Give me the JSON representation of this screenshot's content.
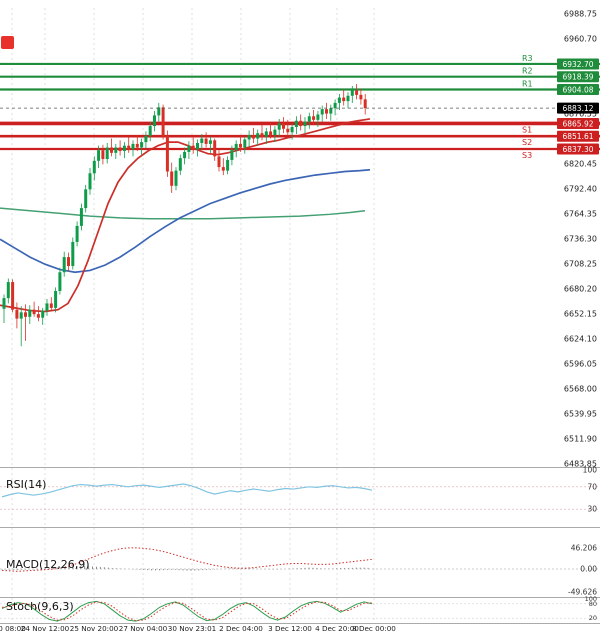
{
  "logo": {
    "color": "#e8312a"
  },
  "colors": {
    "up": "#0e9c4a",
    "down": "#d93025",
    "ma_fast": "#cc2f2a",
    "ma_mid": "#3c66b5",
    "ma_slow": "#44a072",
    "resistance": "#1e8c3a",
    "support": "#cc1f1f",
    "price_badge_bg": "#000000",
    "rsi_line": "#7fc4e0",
    "stoch_k": "#2f9e4f",
    "stoch_d": "#d93025",
    "grid": "#d8d8d8",
    "axis_text": "#222222"
  },
  "chart_data": {
    "type": "candlestick",
    "price_axis": {
      "top_value": 6988.75,
      "step": 28.05,
      "ticks": [
        "6988.75",
        "6960.70",
        "6932.65",
        "6904.60",
        "6876.55",
        "6848.50",
        "6820.45",
        "6792.40",
        "6764.35",
        "6736.30",
        "6708.25",
        "6680.20",
        "6652.15",
        "6624.10",
        "6596.05",
        "6568.00",
        "6539.95",
        "6511.90",
        "6483.85"
      ]
    },
    "pivots": [
      {
        "label": "R3",
        "value": 6932.7,
        "display": "6932.70",
        "type": "resistance"
      },
      {
        "label": "R2",
        "value": 6918.39,
        "display": "6918.39",
        "type": "resistance"
      },
      {
        "label": "R1",
        "value": 6904.08,
        "display": "6904.08",
        "type": "resistance"
      },
      {
        "label": "S1",
        "value": 6865.92,
        "display": "6865.92",
        "type": "support"
      },
      {
        "label": "S2",
        "value": 6851.61,
        "display": "6851.61",
        "type": "support"
      },
      {
        "label": "S3",
        "value": 6837.3,
        "display": "6837.30",
        "type": "support"
      }
    ],
    "current_price": {
      "value": 6883.12,
      "display": "6883.12"
    },
    "x_axis": {
      "labels": [
        "0 08:00",
        "24 Nov 12:00",
        "25 Nov 20:00",
        "27 Nov 04:00",
        "30 Nov 23:01",
        "2 Dec 04:00",
        "3 Dec 12:00",
        "4 Dec 20:00",
        "8 Dec 00:00"
      ],
      "positions": [
        12,
        45,
        94,
        143,
        192,
        241,
        290,
        337,
        374
      ]
    },
    "candles": [
      [
        6658,
        6674,
        6642,
        6670
      ],
      [
        6670,
        6692,
        6664,
        6688
      ],
      [
        6688,
        6691,
        6654,
        6657
      ],
      [
        6657,
        6665,
        6636,
        6647
      ],
      [
        6647,
        6661,
        6616,
        6654
      ],
      [
        6654,
        6663,
        6622,
        6649
      ],
      [
        6649,
        6662,
        6641,
        6657
      ],
      [
        6657,
        6666,
        6649,
        6652
      ],
      [
        6652,
        6661,
        6644,
        6648
      ],
      [
        6648,
        6659,
        6640,
        6656
      ],
      [
        6656,
        6669,
        6650,
        6664
      ],
      [
        6664,
        6671,
        6655,
        6659
      ],
      [
        6659,
        6682,
        6654,
        6678
      ],
      [
        6678,
        6704,
        6674,
        6699
      ],
      [
        6699,
        6722,
        6694,
        6716
      ],
      [
        6716,
        6721,
        6700,
        6706
      ],
      [
        6706,
        6738,
        6702,
        6733
      ],
      [
        6733,
        6756,
        6728,
        6751
      ],
      [
        6751,
        6776,
        6746,
        6771
      ],
      [
        6771,
        6797,
        6766,
        6792
      ],
      [
        6792,
        6816,
        6786,
        6810
      ],
      [
        6810,
        6829,
        6802,
        6824
      ],
      [
        6824,
        6841,
        6816,
        6836
      ],
      [
        6836,
        6842,
        6820,
        6826
      ],
      [
        6826,
        6844,
        6821,
        6839
      ],
      [
        6839,
        6849,
        6829,
        6833
      ],
      [
        6833,
        6843,
        6826,
        6839
      ],
      [
        6839,
        6847,
        6830,
        6835
      ],
      [
        6835,
        6845,
        6827,
        6841
      ],
      [
        6841,
        6851,
        6833,
        6837
      ],
      [
        6837,
        6847,
        6829,
        6843
      ],
      [
        6843,
        6853,
        6835,
        6839
      ],
      [
        6839,
        6849,
        6831,
        6845
      ],
      [
        6845,
        6857,
        6838,
        6852
      ],
      [
        6852,
        6868,
        6846,
        6863
      ],
      [
        6863,
        6880,
        6857,
        6875
      ],
      [
        6875,
        6889,
        6868,
        6884
      ],
      [
        6884,
        6887,
        6848,
        6852
      ],
      [
        6852,
        6858,
        6806,
        6812
      ],
      [
        6812,
        6822,
        6788,
        6796
      ],
      [
        6796,
        6817,
        6791,
        6813
      ],
      [
        6813,
        6831,
        6808,
        6827
      ],
      [
        6827,
        6839,
        6820,
        6834
      ],
      [
        6834,
        6846,
        6826,
        6841
      ],
      [
        6841,
        6850,
        6832,
        6837
      ],
      [
        6837,
        6848,
        6829,
        6844
      ],
      [
        6844,
        6854,
        6836,
        6849
      ],
      [
        6849,
        6856,
        6839,
        6843
      ],
      [
        6843,
        6851,
        6833,
        6847
      ],
      [
        6847,
        6849,
        6824,
        6829
      ],
      [
        6829,
        6836,
        6812,
        6817
      ],
      [
        6817,
        6827,
        6808,
        6813
      ],
      [
        6813,
        6829,
        6809,
        6825
      ],
      [
        6825,
        6841,
        6819,
        6836
      ],
      [
        6836,
        6847,
        6828,
        6843
      ],
      [
        6843,
        6852,
        6834,
        6839
      ],
      [
        6839,
        6851,
        6832,
        6848
      ],
      [
        6848,
        6858,
        6840,
        6853
      ],
      [
        6853,
        6861,
        6844,
        6849
      ],
      [
        6849,
        6859,
        6841,
        6855
      ],
      [
        6855,
        6865,
        6847,
        6851
      ],
      [
        6851,
        6861,
        6843,
        6857
      ],
      [
        6857,
        6867,
        6849,
        6853
      ],
      [
        6853,
        6863,
        6845,
        6859
      ],
      [
        6859,
        6871,
        6851,
        6866
      ],
      [
        6866,
        6873,
        6855,
        6860
      ],
      [
        6860,
        6870,
        6852,
        6856
      ],
      [
        6856,
        6866,
        6848,
        6862
      ],
      [
        6862,
        6874,
        6854,
        6869
      ],
      [
        6869,
        6876,
        6858,
        6863
      ],
      [
        6863,
        6873,
        6855,
        6868
      ],
      [
        6868,
        6878,
        6860,
        6874
      ],
      [
        6874,
        6881,
        6864,
        6870
      ],
      [
        6870,
        6880,
        6862,
        6876
      ],
      [
        6876,
        6886,
        6868,
        6882
      ],
      [
        6882,
        6889,
        6871,
        6877
      ],
      [
        6877,
        6887,
        6869,
        6883
      ],
      [
        6883,
        6893,
        6875,
        6889
      ],
      [
        6889,
        6899,
        6881,
        6895
      ],
      [
        6895,
        6904,
        6886,
        6891
      ],
      [
        6891,
        6901,
        6883,
        6897
      ],
      [
        6897,
        6908,
        6889,
        6903
      ],
      [
        6903,
        6910,
        6893,
        6898
      ],
      [
        6898,
        6905,
        6887,
        6893
      ],
      [
        6893,
        6899,
        6876,
        6883.12
      ]
    ],
    "moving_averages": {
      "fast_red": [
        [
          0,
          6662
        ],
        [
          15,
          6659
        ],
        [
          30,
          6656
        ],
        [
          45,
          6655
        ],
        [
          58,
          6657
        ],
        [
          68,
          6664
        ],
        [
          78,
          6684
        ],
        [
          88,
          6712
        ],
        [
          98,
          6744
        ],
        [
          108,
          6776
        ],
        [
          118,
          6800
        ],
        [
          128,
          6816
        ],
        [
          138,
          6827
        ],
        [
          148,
          6835
        ],
        [
          158,
          6841
        ],
        [
          168,
          6845
        ],
        [
          178,
          6845
        ],
        [
          188,
          6841
        ],
        [
          198,
          6836
        ],
        [
          208,
          6832
        ],
        [
          218,
          6831
        ],
        [
          228,
          6833
        ],
        [
          238,
          6836
        ],
        [
          248,
          6839
        ],
        [
          258,
          6842
        ],
        [
          268,
          6845
        ],
        [
          278,
          6847
        ],
        [
          288,
          6850
        ],
        [
          298,
          6852
        ],
        [
          308,
          6855
        ],
        [
          318,
          6858
        ],
        [
          328,
          6861
        ],
        [
          338,
          6864
        ],
        [
          348,
          6867
        ],
        [
          358,
          6869
        ],
        [
          370,
          6871
        ]
      ],
      "mid_blue": [
        [
          0,
          6736
        ],
        [
          15,
          6726
        ],
        [
          30,
          6716
        ],
        [
          45,
          6708
        ],
        [
          60,
          6702
        ],
        [
          75,
          6699
        ],
        [
          90,
          6701
        ],
        [
          105,
          6707
        ],
        [
          120,
          6716
        ],
        [
          135,
          6727
        ],
        [
          150,
          6739
        ],
        [
          165,
          6750
        ],
        [
          180,
          6760
        ],
        [
          195,
          6768
        ],
        [
          210,
          6776
        ],
        [
          225,
          6782
        ],
        [
          240,
          6788
        ],
        [
          255,
          6793
        ],
        [
          270,
          6798
        ],
        [
          285,
          6802
        ],
        [
          300,
          6805
        ],
        [
          315,
          6808
        ],
        [
          330,
          6810
        ],
        [
          345,
          6812
        ],
        [
          360,
          6813
        ],
        [
          370,
          6814
        ]
      ],
      "slow_green": [
        [
          0,
          6771
        ],
        [
          30,
          6768
        ],
        [
          60,
          6765
        ],
        [
          90,
          6762
        ],
        [
          120,
          6760
        ],
        [
          150,
          6759
        ],
        [
          180,
          6759
        ],
        [
          210,
          6759
        ],
        [
          240,
          6760
        ],
        [
          270,
          6761
        ],
        [
          300,
          6762
        ],
        [
          330,
          6764
        ],
        [
          350,
          6766
        ],
        [
          365,
          6768
        ]
      ]
    },
    "rsi": {
      "label": "RSI(14)",
      "axis": [
        {
          "label": "100",
          "value": 100
        },
        {
          "label": "70",
          "value": 70
        },
        {
          "label": "30",
          "value": 30
        }
      ],
      "ref": [
        70,
        30
      ],
      "values": [
        52,
        56,
        59,
        57,
        55,
        57,
        60,
        64,
        68,
        72,
        74,
        73,
        71,
        73,
        74,
        72,
        70,
        72,
        73,
        71,
        69,
        71,
        73,
        75,
        72,
        67,
        61,
        57,
        60,
        63,
        61,
        64,
        66,
        64,
        62,
        65,
        67,
        66,
        68,
        70,
        69,
        71,
        72,
        70,
        68,
        69,
        67,
        64
      ]
    },
    "macd": {
      "label": "MACD(12,26,9)",
      "axis": [
        {
          "label": "46.206",
          "value": 46.206
        },
        {
          "label": "0.00",
          "value": 0
        },
        {
          "label": "-49.626",
          "value": -49.626
        }
      ],
      "signal": [
        -3,
        -4,
        -5,
        -4,
        -3,
        -2,
        -1,
        1,
        4,
        9,
        15,
        22,
        29,
        35,
        40,
        44,
        46,
        46,
        45,
        43,
        40,
        36,
        31,
        26,
        21,
        16,
        12,
        8,
        5,
        3,
        2,
        2,
        3,
        5,
        7,
        9,
        11,
        12,
        12,
        11,
        10,
        10,
        11,
        13,
        15,
        17,
        19,
        21
      ],
      "histogram": [
        -1,
        -1,
        -2,
        -1,
        0,
        1,
        2,
        3,
        5,
        6,
        7,
        6,
        5,
        4,
        2,
        1,
        0,
        -1,
        -2,
        -3,
        -3,
        -2,
        -2,
        -3,
        -4,
        -3,
        -2,
        -1,
        0,
        1,
        2,
        2,
        1,
        0,
        -1,
        -1,
        0,
        1,
        2,
        3,
        2,
        1,
        1,
        2,
        2,
        3,
        3,
        2
      ]
    },
    "stoch": {
      "label": "Stoch(9,6,3)",
      "axis": [
        {
          "label": "100",
          "value": 100
        },
        {
          "label": "80",
          "value": 80
        },
        {
          "label": "20",
          "value": 20
        }
      ],
      "ref": [
        80,
        20
      ],
      "k": [
        60,
        75,
        85,
        80,
        60,
        35,
        15,
        8,
        20,
        45,
        70,
        85,
        90,
        80,
        55,
        30,
        12,
        8,
        18,
        40,
        65,
        80,
        88,
        75,
        50,
        25,
        10,
        15,
        35,
        60,
        78,
        85,
        70,
        45,
        22,
        12,
        25,
        50,
        72,
        85,
        90,
        82,
        65,
        45,
        60,
        78,
        88,
        80
      ],
      "d": [
        65,
        70,
        80,
        82,
        70,
        50,
        28,
        12,
        14,
        30,
        55,
        75,
        88,
        85,
        70,
        45,
        22,
        10,
        12,
        28,
        52,
        72,
        85,
        82,
        62,
        38,
        16,
        12,
        22,
        45,
        68,
        82,
        80,
        60,
        36,
        18,
        18,
        38,
        60,
        78,
        88,
        86,
        72,
        52,
        52,
        68,
        82,
        84
      ]
    }
  }
}
